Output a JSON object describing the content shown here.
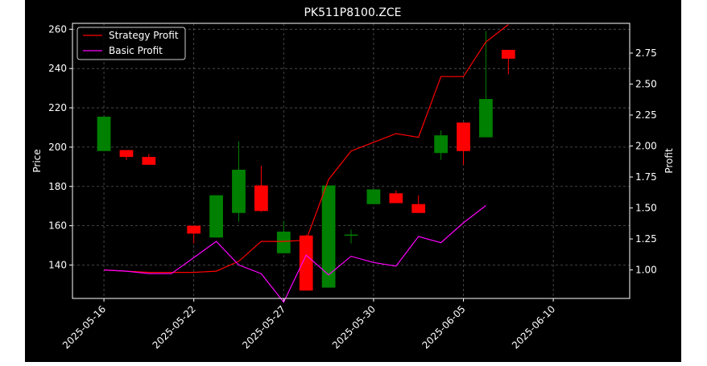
{
  "chart_data": {
    "type": "candlestick",
    "title": "PK511P8100.ZCE",
    "ylabel_left": "Price",
    "ylabel_right": "Profit",
    "xlabel": "",
    "grid": true,
    "legend_position": "top-left",
    "colors": {
      "background": "#000000",
      "axes": "#ffffff",
      "grid": "#555555",
      "up": "#008000",
      "down": "#ff0000",
      "strategy": "#ff0000",
      "basic": "#ff00ff"
    },
    "x_ticks": [
      "2025-05-16",
      "2025-05-22",
      "2025-05-27",
      "2025-05-30",
      "2025-06-05",
      "2025-06-10"
    ],
    "x_tick_index": [
      0,
      4,
      8,
      12,
      16,
      20
    ],
    "y_left_ticks": [
      "140",
      "160",
      "180",
      "200",
      "220",
      "240",
      "260"
    ],
    "y_left_range": [
      123,
      263
    ],
    "y_right_ticks": [
      "1.00",
      "1.25",
      "1.50",
      "1.75",
      "2.00",
      "2.25",
      "2.50",
      "2.75"
    ],
    "y_right_range": [
      0.77,
      2.99
    ],
    "x_range": [
      -1.4,
      23.4
    ],
    "candles": [
      {
        "i": 0,
        "open": 198,
        "close": 215.5,
        "high": 215.5,
        "low": 198
      },
      {
        "i": 1,
        "open": 198.5,
        "close": 195,
        "high": 198.5,
        "low": 193.5
      },
      {
        "i": 2,
        "open": 195,
        "close": 191,
        "high": 196.5,
        "low": 191
      },
      {
        "i": 4,
        "open": 160,
        "close": 156,
        "high": 160,
        "low": 151
      },
      {
        "i": 5,
        "open": 154,
        "close": 175.5,
        "high": 175.5,
        "low": 154
      },
      {
        "i": 6,
        "open": 166.5,
        "close": 188.5,
        "high": 203,
        "low": 162
      },
      {
        "i": 7,
        "open": 180.5,
        "close": 167.5,
        "high": 190.5,
        "low": 167
      },
      {
        "i": 8,
        "open": 146,
        "close": 157,
        "high": 162.5,
        "low": 146
      },
      {
        "i": 9,
        "open": 155,
        "close": 127,
        "high": 155.5,
        "low": 127
      },
      {
        "i": 10,
        "open": 128.5,
        "close": 180.5,
        "high": 180.5,
        "low": 128.5
      },
      {
        "i": 11,
        "open": 155,
        "close": 155.5,
        "high": 158,
        "low": 151
      },
      {
        "i": 12,
        "open": 171,
        "close": 178.5,
        "high": 178.5,
        "low": 171
      },
      {
        "i": 13,
        "open": 176.5,
        "close": 171.5,
        "high": 178,
        "low": 171.5
      },
      {
        "i": 14,
        "open": 171,
        "close": 166.5,
        "high": 175.5,
        "low": 166.5
      },
      {
        "i": 15,
        "open": 197,
        "close": 206,
        "high": 208.5,
        "low": 193.5
      },
      {
        "i": 16,
        "open": 212.5,
        "close": 198,
        "high": 212.5,
        "low": 191
      },
      {
        "i": 17,
        "open": 205,
        "close": 224.5,
        "high": 259,
        "low": 205
      },
      {
        "i": 18,
        "open": 249.5,
        "close": 245,
        "high": 249.5,
        "low": 237
      }
    ],
    "series": [
      {
        "name": "Strategy Profit",
        "values": [
          1.0,
          0.99,
          0.98,
          0.98,
          0.98,
          0.99,
          1.07,
          1.23,
          1.23,
          1.24,
          1.73,
          1.96,
          2.03,
          2.1,
          2.07,
          2.56,
          2.56,
          2.84,
          2.98
        ]
      },
      {
        "name": "Basic Profit",
        "values": [
          1.0,
          0.99,
          0.97,
          0.97,
          1.1,
          1.23,
          1.04,
          0.97,
          0.74,
          1.12,
          0.96,
          1.11,
          1.06,
          1.03,
          1.27,
          1.22,
          1.38,
          1.52
        ]
      }
    ]
  }
}
